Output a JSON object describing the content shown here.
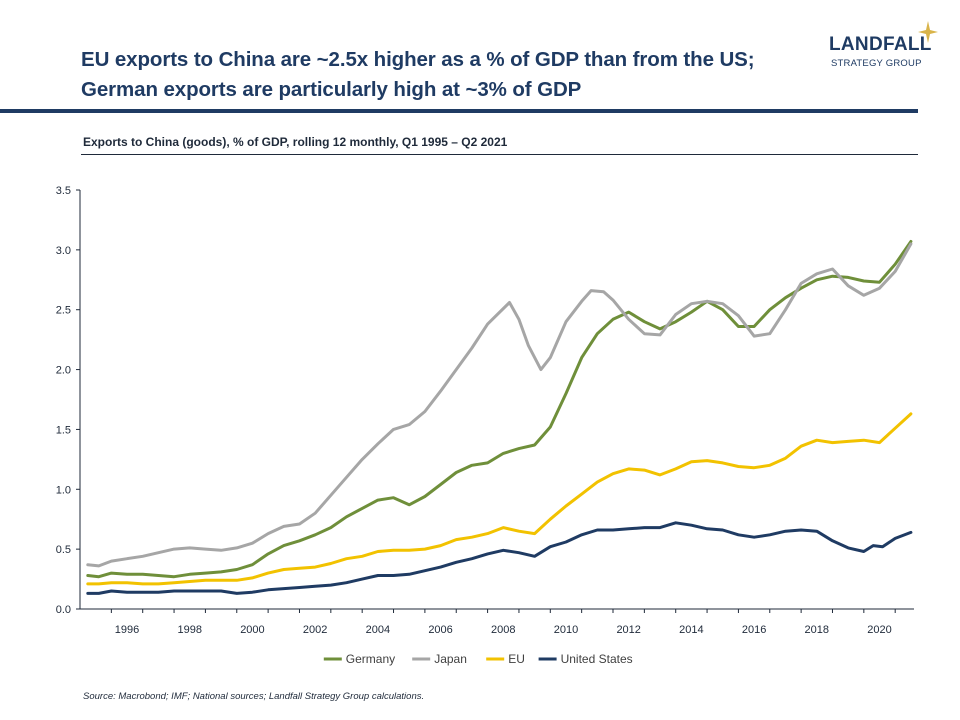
{
  "header": {
    "title_line1": "EU exports to China are ~2.5x higher as a % of GDP than from the US;",
    "title_line2": "German exports are particularly high at ~3% of GDP",
    "subtitle": "Exports to China (goods), % of GDP, rolling 12 monthly, Q1 1995 – Q2 2021"
  },
  "logo": {
    "name": "LANDFALL",
    "tagline": "STRATEGY GROUP",
    "icon": "sparkle-star-icon",
    "color": "#d9b44a"
  },
  "footer": {
    "source": "Source: Macrobond;  IMF; National sources; Landfall Strategy Group calculations."
  },
  "chart_data": {
    "type": "line",
    "title": "Exports to China (goods), % of GDP, rolling 12 monthly, Q1 1995 – Q2 2021",
    "xlabel": "",
    "ylabel": "",
    "xlim": [
      1995.0,
      2021.6
    ],
    "ylim": [
      0,
      3.5
    ],
    "x_ticks": [
      "1996",
      "1998",
      "2000",
      "2002",
      "2004",
      "2006",
      "2008",
      "2010",
      "2012",
      "2014",
      "2016",
      "2018",
      "2020"
    ],
    "y_ticks": [
      "0.0",
      "0.5",
      "1.0",
      "1.5",
      "2.0",
      "2.5",
      "3.0",
      "3.5"
    ],
    "grid": false,
    "legend": "bottom-center",
    "series": [
      {
        "name": "Germany",
        "color": "#6f8f3a",
        "points": [
          [
            1995.25,
            0.28
          ],
          [
            1995.6,
            0.27
          ],
          [
            1996.0,
            0.3
          ],
          [
            1996.5,
            0.29
          ],
          [
            1997.0,
            0.29
          ],
          [
            1997.5,
            0.28
          ],
          [
            1998.0,
            0.27
          ],
          [
            1998.5,
            0.29
          ],
          [
            1999.0,
            0.3
          ],
          [
            1999.5,
            0.31
          ],
          [
            2000.0,
            0.33
          ],
          [
            2000.5,
            0.37
          ],
          [
            2001.0,
            0.46
          ],
          [
            2001.5,
            0.53
          ],
          [
            2002.0,
            0.57
          ],
          [
            2002.5,
            0.62
          ],
          [
            2003.0,
            0.68
          ],
          [
            2003.5,
            0.77
          ],
          [
            2004.0,
            0.84
          ],
          [
            2004.5,
            0.91
          ],
          [
            2005.0,
            0.93
          ],
          [
            2005.5,
            0.87
          ],
          [
            2006.0,
            0.94
          ],
          [
            2006.5,
            1.04
          ],
          [
            2007.0,
            1.14
          ],
          [
            2007.5,
            1.2
          ],
          [
            2008.0,
            1.22
          ],
          [
            2008.5,
            1.3
          ],
          [
            2009.0,
            1.34
          ],
          [
            2009.5,
            1.37
          ],
          [
            2010.0,
            1.52
          ],
          [
            2010.5,
            1.8
          ],
          [
            2011.0,
            2.1
          ],
          [
            2011.5,
            2.3
          ],
          [
            2012.0,
            2.42
          ],
          [
            2012.5,
            2.48
          ],
          [
            2013.0,
            2.4
          ],
          [
            2013.5,
            2.34
          ],
          [
            2014.0,
            2.4
          ],
          [
            2014.5,
            2.48
          ],
          [
            2015.0,
            2.57
          ],
          [
            2015.5,
            2.5
          ],
          [
            2016.0,
            2.36
          ],
          [
            2016.5,
            2.36
          ],
          [
            2017.0,
            2.5
          ],
          [
            2017.5,
            2.6
          ],
          [
            2018.0,
            2.68
          ],
          [
            2018.5,
            2.75
          ],
          [
            2019.0,
            2.78
          ],
          [
            2019.5,
            2.77
          ],
          [
            2020.0,
            2.74
          ],
          [
            2020.5,
            2.73
          ],
          [
            2021.0,
            2.88
          ],
          [
            2021.5,
            3.07
          ]
        ]
      },
      {
        "name": "Japan",
        "color": "#a6a6a6",
        "points": [
          [
            1995.25,
            0.37
          ],
          [
            1995.6,
            0.36
          ],
          [
            1996.0,
            0.4
          ],
          [
            1996.5,
            0.42
          ],
          [
            1997.0,
            0.44
          ],
          [
            1997.5,
            0.47
          ],
          [
            1998.0,
            0.5
          ],
          [
            1998.5,
            0.51
          ],
          [
            1999.0,
            0.5
          ],
          [
            1999.5,
            0.49
          ],
          [
            2000.0,
            0.51
          ],
          [
            2000.5,
            0.55
          ],
          [
            2001.0,
            0.63
          ],
          [
            2001.5,
            0.69
          ],
          [
            2002.0,
            0.71
          ],
          [
            2002.5,
            0.8
          ],
          [
            2003.0,
            0.95
          ],
          [
            2003.5,
            1.1
          ],
          [
            2004.0,
            1.25
          ],
          [
            2004.5,
            1.38
          ],
          [
            2005.0,
            1.5
          ],
          [
            2005.5,
            1.54
          ],
          [
            2006.0,
            1.65
          ],
          [
            2006.5,
            1.82
          ],
          [
            2007.0,
            2.0
          ],
          [
            2007.5,
            2.18
          ],
          [
            2008.0,
            2.38
          ],
          [
            2008.7,
            2.56
          ],
          [
            2009.0,
            2.42
          ],
          [
            2009.3,
            2.2
          ],
          [
            2009.7,
            2.0
          ],
          [
            2010.0,
            2.1
          ],
          [
            2010.5,
            2.4
          ],
          [
            2011.0,
            2.57
          ],
          [
            2011.3,
            2.66
          ],
          [
            2011.7,
            2.65
          ],
          [
            2012.0,
            2.58
          ],
          [
            2012.5,
            2.42
          ],
          [
            2013.0,
            2.3
          ],
          [
            2013.5,
            2.29
          ],
          [
            2014.0,
            2.46
          ],
          [
            2014.5,
            2.55
          ],
          [
            2015.0,
            2.57
          ],
          [
            2015.5,
            2.55
          ],
          [
            2016.0,
            2.45
          ],
          [
            2016.5,
            2.28
          ],
          [
            2017.0,
            2.3
          ],
          [
            2017.5,
            2.5
          ],
          [
            2018.0,
            2.72
          ],
          [
            2018.5,
            2.8
          ],
          [
            2019.0,
            2.84
          ],
          [
            2019.5,
            2.7
          ],
          [
            2020.0,
            2.62
          ],
          [
            2020.5,
            2.68
          ],
          [
            2021.0,
            2.82
          ],
          [
            2021.5,
            3.05
          ]
        ]
      },
      {
        "name": "EU",
        "color": "#f2c200",
        "points": [
          [
            1995.25,
            0.21
          ],
          [
            1995.6,
            0.21
          ],
          [
            1996.0,
            0.22
          ],
          [
            1996.5,
            0.22
          ],
          [
            1997.0,
            0.21
          ],
          [
            1997.5,
            0.21
          ],
          [
            1998.0,
            0.22
          ],
          [
            1998.5,
            0.23
          ],
          [
            1999.0,
            0.24
          ],
          [
            1999.5,
            0.24
          ],
          [
            2000.0,
            0.24
          ],
          [
            2000.5,
            0.26
          ],
          [
            2001.0,
            0.3
          ],
          [
            2001.5,
            0.33
          ],
          [
            2002.0,
            0.34
          ],
          [
            2002.5,
            0.35
          ],
          [
            2003.0,
            0.38
          ],
          [
            2003.5,
            0.42
          ],
          [
            2004.0,
            0.44
          ],
          [
            2004.5,
            0.48
          ],
          [
            2005.0,
            0.49
          ],
          [
            2005.5,
            0.49
          ],
          [
            2006.0,
            0.5
          ],
          [
            2006.5,
            0.53
          ],
          [
            2007.0,
            0.58
          ],
          [
            2007.5,
            0.6
          ],
          [
            2008.0,
            0.63
          ],
          [
            2008.5,
            0.68
          ],
          [
            2009.0,
            0.65
          ],
          [
            2009.5,
            0.63
          ],
          [
            2010.0,
            0.75
          ],
          [
            2010.5,
            0.86
          ],
          [
            2011.0,
            0.96
          ],
          [
            2011.5,
            1.06
          ],
          [
            2012.0,
            1.13
          ],
          [
            2012.5,
            1.17
          ],
          [
            2013.0,
            1.16
          ],
          [
            2013.5,
            1.12
          ],
          [
            2014.0,
            1.17
          ],
          [
            2014.5,
            1.23
          ],
          [
            2015.0,
            1.24
          ],
          [
            2015.5,
            1.22
          ],
          [
            2016.0,
            1.19
          ],
          [
            2016.5,
            1.18
          ],
          [
            2017.0,
            1.2
          ],
          [
            2017.5,
            1.26
          ],
          [
            2018.0,
            1.36
          ],
          [
            2018.5,
            1.41
          ],
          [
            2019.0,
            1.39
          ],
          [
            2019.5,
            1.4
          ],
          [
            2020.0,
            1.41
          ],
          [
            2020.5,
            1.39
          ],
          [
            2021.0,
            1.51
          ],
          [
            2021.5,
            1.63
          ]
        ]
      },
      {
        "name": "United States",
        "color": "#1f3b63",
        "points": [
          [
            1995.25,
            0.13
          ],
          [
            1995.6,
            0.13
          ],
          [
            1996.0,
            0.15
          ],
          [
            1996.5,
            0.14
          ],
          [
            1997.0,
            0.14
          ],
          [
            1997.5,
            0.14
          ],
          [
            1998.0,
            0.15
          ],
          [
            1998.5,
            0.15
          ],
          [
            1999.0,
            0.15
          ],
          [
            1999.5,
            0.15
          ],
          [
            2000.0,
            0.13
          ],
          [
            2000.5,
            0.14
          ],
          [
            2001.0,
            0.16
          ],
          [
            2001.5,
            0.17
          ],
          [
            2002.0,
            0.18
          ],
          [
            2002.5,
            0.19
          ],
          [
            2003.0,
            0.2
          ],
          [
            2003.5,
            0.22
          ],
          [
            2004.0,
            0.25
          ],
          [
            2004.5,
            0.28
          ],
          [
            2005.0,
            0.28
          ],
          [
            2005.5,
            0.29
          ],
          [
            2006.0,
            0.32
          ],
          [
            2006.5,
            0.35
          ],
          [
            2007.0,
            0.39
          ],
          [
            2007.5,
            0.42
          ],
          [
            2008.0,
            0.46
          ],
          [
            2008.5,
            0.49
          ],
          [
            2009.0,
            0.47
          ],
          [
            2009.5,
            0.44
          ],
          [
            2010.0,
            0.52
          ],
          [
            2010.5,
            0.56
          ],
          [
            2011.0,
            0.62
          ],
          [
            2011.5,
            0.66
          ],
          [
            2012.0,
            0.66
          ],
          [
            2012.5,
            0.67
          ],
          [
            2013.0,
            0.68
          ],
          [
            2013.5,
            0.68
          ],
          [
            2014.0,
            0.72
          ],
          [
            2014.5,
            0.7
          ],
          [
            2015.0,
            0.67
          ],
          [
            2015.5,
            0.66
          ],
          [
            2016.0,
            0.62
          ],
          [
            2016.5,
            0.6
          ],
          [
            2017.0,
            0.62
          ],
          [
            2017.5,
            0.65
          ],
          [
            2018.0,
            0.66
          ],
          [
            2018.5,
            0.65
          ],
          [
            2019.0,
            0.57
          ],
          [
            2019.5,
            0.51
          ],
          [
            2020.0,
            0.48
          ],
          [
            2020.3,
            0.53
          ],
          [
            2020.6,
            0.52
          ],
          [
            2021.0,
            0.59
          ],
          [
            2021.5,
            0.64
          ]
        ]
      }
    ]
  }
}
